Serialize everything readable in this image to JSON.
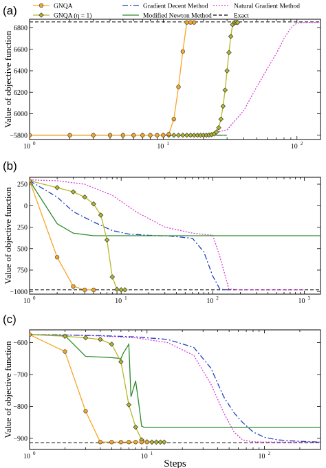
{
  "legend": [
    {
      "name": "GNQA",
      "color": "#f5a623",
      "dash": "",
      "marker": "circle"
    },
    {
      "name": "GNQA (η = 1)",
      "color": "#b5b82a",
      "dash": "",
      "marker": "diamond"
    },
    {
      "name": "Gradient Decent Method",
      "color": "#1f3fbf",
      "dash": "8,3,2,3",
      "marker": ""
    },
    {
      "name": "Modified Newton Method",
      "color": "#2a8a2a",
      "dash": "",
      "marker": ""
    },
    {
      "name": "Natural Gradient Method",
      "color": "#d63bd6",
      "dash": "2,2",
      "marker": ""
    },
    {
      "name": "Exact",
      "color": "#000000",
      "dash": "5,3",
      "marker": ""
    }
  ],
  "chart_data": [
    {
      "type": "line",
      "panel_label": "(a)",
      "ylabel": "Value of objective function",
      "xlabel": "",
      "xscale": "log",
      "xlim": [
        1,
        150
      ],
      "ylim": [
        -6880,
        -5760
      ],
      "yinvert": true,
      "xticks": [
        {
          "v": 1,
          "base": "10",
          "exp": "0"
        },
        {
          "v": 10,
          "base": "10",
          "exp": "1"
        },
        {
          "v": 100,
          "base": "10",
          "exp": "2"
        }
      ],
      "yticks": [
        {
          "v": -5800,
          "label": "−5800"
        },
        {
          "v": -6000,
          "label": "6000"
        },
        {
          "v": -6200,
          "label": "6200"
        },
        {
          "v": -6400,
          "label": "6400"
        },
        {
          "v": -6600,
          "label": "6600"
        },
        {
          "v": -6800,
          "label": "6800"
        }
      ],
      "series": [
        {
          "name": "GNQA",
          "x": [
            1,
            2,
            3,
            4,
            5,
            6,
            7,
            8,
            9,
            10,
            11,
            12,
            13,
            14,
            15,
            16,
            17
          ],
          "y": [
            -5800,
            -5800,
            -5800,
            -5800,
            -5800,
            -5800,
            -5800,
            -5800,
            -5800,
            -5800,
            -5810,
            -5950,
            -6250,
            -6580,
            -6850,
            -6850,
            -6850
          ]
        },
        {
          "name": "GNQA (η = 1)",
          "x": [
            1,
            2,
            3,
            4,
            5,
            6,
            7,
            8,
            9,
            10,
            11,
            12,
            13,
            14,
            15,
            16,
            17,
            18,
            19,
            20,
            21,
            22,
            23,
            24,
            25,
            26,
            27,
            28,
            29,
            30,
            31,
            32,
            33,
            34,
            35,
            36
          ],
          "y": [
            -5800,
            -5800,
            -5800,
            -5800,
            -5800,
            -5800,
            -5800,
            -5800,
            -5800,
            -5800,
            -5800,
            -5800,
            -5800,
            -5800,
            -5800,
            -5800,
            -5800,
            -5800,
            -5800,
            -5800,
            -5800,
            -5802,
            -5805,
            -5812,
            -5830,
            -5870,
            -5950,
            -6070,
            -6220,
            -6400,
            -6570,
            -6720,
            -6830,
            -6850,
            -6850,
            -6850
          ]
        },
        {
          "name": "Gradient Decent Method",
          "x": [
            1,
            10,
            20,
            30
          ],
          "y": [
            -5800,
            -5800,
            -5800,
            -5800
          ]
        },
        {
          "name": "Modified Newton Method",
          "x": [
            1,
            10,
            20,
            30
          ],
          "y": [
            -5800,
            -5800,
            -5800,
            -5800
          ]
        },
        {
          "name": "Natural Gradient Method",
          "x": [
            1,
            10,
            20,
            30,
            40,
            50,
            60,
            70,
            80,
            90,
            100,
            120,
            150
          ],
          "y": [
            -5800,
            -5800,
            -5800,
            -5850,
            -6030,
            -6250,
            -6420,
            -6560,
            -6700,
            -6800,
            -6845,
            -6850,
            -6850
          ]
        },
        {
          "name": "Exact",
          "x": [
            1,
            150
          ],
          "y": [
            -6855,
            -6855
          ]
        }
      ]
    },
    {
      "type": "line",
      "panel_label": "(b)",
      "ylabel": "Value of objective function",
      "xlabel": "",
      "xscale": "log",
      "xlim": [
        1,
        1500
      ],
      "ylim": [
        -1030,
        330
      ],
      "yinvert": false,
      "xticks": [
        {
          "v": 1,
          "base": "10",
          "exp": "0"
        },
        {
          "v": 10,
          "base": "10",
          "exp": "1"
        },
        {
          "v": 100,
          "base": "10",
          "exp": "2"
        },
        {
          "v": 1000,
          "base": "10",
          "exp": "3"
        }
      ],
      "yticks": [
        {
          "v": 250,
          "label": "250"
        },
        {
          "v": 0,
          "label": "0"
        },
        {
          "v": -250,
          "label": "250"
        },
        {
          "v": -500,
          "label": "500"
        },
        {
          "v": -750,
          "label": "750"
        },
        {
          "v": -1000,
          "label": "−1000"
        }
      ],
      "series": [
        {
          "name": "GNQA",
          "x": [
            1,
            2,
            3,
            4,
            5
          ],
          "y": [
            290,
            -600,
            -940,
            -980,
            -980
          ]
        },
        {
          "name": "GNQA (η = 1)",
          "x": [
            1,
            2,
            3,
            4,
            5,
            6,
            7,
            8,
            9,
            10,
            11
          ],
          "y": [
            290,
            210,
            160,
            100,
            20,
            -110,
            -400,
            -830,
            -975,
            -980,
            -980
          ]
        },
        {
          "name": "Gradient Decent Method",
          "x": [
            1,
            2,
            3,
            5,
            8,
            12,
            20,
            35,
            60,
            80,
            100,
            120,
            150
          ],
          "y": [
            290,
            100,
            -70,
            -190,
            -290,
            -330,
            -345,
            -355,
            -380,
            -540,
            -820,
            -975,
            -980
          ]
        },
        {
          "name": "Modified Newton Method",
          "x": [
            1,
            2,
            3,
            5,
            1500
          ],
          "y": [
            290,
            -210,
            -320,
            -350,
            -350
          ]
        },
        {
          "name": "Natural Gradient Method",
          "x": [
            1,
            2,
            4,
            8,
            15,
            30,
            60,
            100,
            120,
            150,
            200,
            1000
          ],
          "y": [
            300,
            290,
            250,
            120,
            -80,
            -250,
            -320,
            -345,
            -600,
            -970,
            -980,
            -980
          ]
        },
        {
          "name": "Exact",
          "x": [
            1,
            1500
          ],
          "y": [
            -980,
            -980
          ]
        }
      ]
    },
    {
      "type": "line",
      "panel_label": "(c)",
      "ylabel": "Value of objective function",
      "xlabel": "Steps",
      "xscale": "log",
      "xlim": [
        1,
        300
      ],
      "ylim": [
        -935,
        -560
      ],
      "yinvert": false,
      "xticks": [
        {
          "v": 1,
          "base": "10",
          "exp": "0"
        },
        {
          "v": 10,
          "base": "10",
          "exp": "1"
        },
        {
          "v": 100,
          "base": "10",
          "exp": "2"
        }
      ],
      "yticks": [
        {
          "v": -600,
          "label": "−600"
        },
        {
          "v": -700,
          "label": "−700"
        },
        {
          "v": -800,
          "label": "−800"
        },
        {
          "v": -900,
          "label": "−900"
        }
      ],
      "series": [
        {
          "name": "GNQA",
          "x": [
            1,
            2,
            3,
            4,
            5,
            6,
            7,
            8,
            9,
            10
          ],
          "y": [
            -575,
            -628,
            -815,
            -912,
            -912,
            -912,
            -912,
            -912,
            -912,
            -912
          ]
        },
        {
          "name": "GNQA (η = 1)",
          "x": [
            1,
            2,
            3,
            4,
            5,
            6,
            7,
            8,
            9,
            10,
            11,
            12,
            13,
            14
          ],
          "y": [
            -575,
            -580,
            -585,
            -590,
            -605,
            -660,
            -795,
            -865,
            -905,
            -911,
            -912,
            -912,
            -912,
            -912
          ]
        },
        {
          "name": "Gradient Decent Method",
          "x": [
            1,
            2,
            4,
            8,
            15,
            25,
            35,
            45,
            55,
            65,
            80,
            100,
            130,
            170,
            220,
            300
          ],
          "y": [
            -575,
            -576,
            -578,
            -582,
            -590,
            -615,
            -680,
            -770,
            -820,
            -850,
            -880,
            -897,
            -905,
            -908,
            -910,
            -912
          ]
        },
        {
          "name": "Modified Newton Method",
          "x": [
            1,
            2,
            3,
            5,
            6,
            6.3,
            7,
            7.3,
            8,
            8.5,
            9,
            9.5,
            10,
            300
          ],
          "y": [
            -575,
            -578,
            -643,
            -647,
            -650,
            -632,
            -605,
            -770,
            -720,
            -790,
            -862,
            -866,
            -866,
            -866
          ]
        },
        {
          "name": "Natural Gradient Method",
          "x": [
            1,
            2,
            4,
            8,
            15,
            25,
            35,
            45,
            55,
            65,
            80,
            100,
            130,
            300
          ],
          "y": [
            -575,
            -576,
            -579,
            -585,
            -600,
            -640,
            -730,
            -820,
            -880,
            -905,
            -911,
            -912,
            -912,
            -912
          ]
        },
        {
          "name": "Exact",
          "x": [
            1,
            300
          ],
          "y": [
            -914,
            -914
          ]
        }
      ]
    }
  ]
}
